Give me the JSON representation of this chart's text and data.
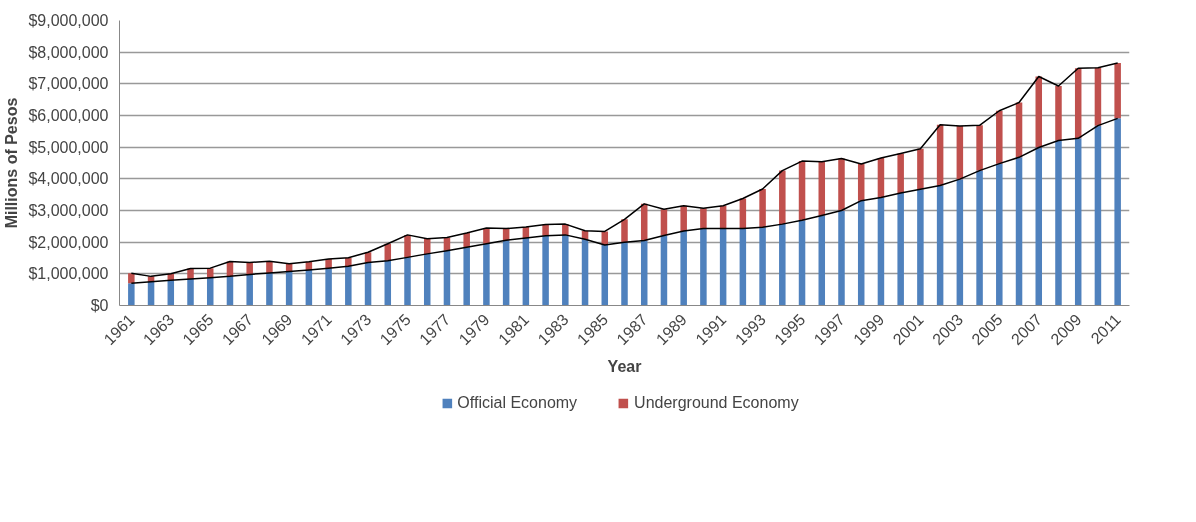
{
  "chart_data": {
    "type": "bar",
    "stacked": true,
    "xlabel": "Year",
    "ylabel": "Millions of Pesos",
    "categories": [
      "1961",
      null,
      "1963",
      null,
      "1965",
      null,
      "1967",
      null,
      "1969",
      null,
      "1971",
      null,
      "1973",
      null,
      "1975",
      null,
      "1977",
      null,
      "1979",
      null,
      "1981",
      null,
      "1983",
      null,
      "1985",
      null,
      "1987",
      null,
      "1989",
      null,
      "1991",
      null,
      "1993",
      null,
      "1995",
      null,
      "1997",
      null,
      "1999",
      null,
      "2001",
      null,
      "2003",
      null,
      "2005",
      null,
      "2007",
      null,
      "2009",
      null,
      "2011"
    ],
    "series": [
      {
        "name": "Official Economy",
        "color": "#4f81bd",
        "values": [
          700000,
          750000,
          800000,
          840000,
          880000,
          920000,
          980000,
          1030000,
          1070000,
          1120000,
          1180000,
          1240000,
          1360000,
          1410000,
          1520000,
          1630000,
          1730000,
          1840000,
          1950000,
          2060000,
          2130000,
          2200000,
          2230000,
          2090000,
          1910000,
          2000000,
          2050000,
          2210000,
          2350000,
          2430000,
          2430000,
          2430000,
          2470000,
          2570000,
          2690000,
          2840000,
          3000000,
          3310000,
          3410000,
          3550000,
          3670000,
          3790000,
          3990000,
          4260000,
          4480000,
          4680000,
          4990000,
          5210000,
          5280000,
          5680000,
          5910000
        ]
      },
      {
        "name": "Underground Economy",
        "color": "#c0504d",
        "values": [
          320000,
          170000,
          200000,
          330000,
          300000,
          470000,
          380000,
          370000,
          250000,
          260000,
          290000,
          270000,
          320000,
          540000,
          710000,
          480000,
          420000,
          450000,
          500000,
          370000,
          350000,
          360000,
          340000,
          270000,
          430000,
          720000,
          1160000,
          830000,
          800000,
          640000,
          720000,
          950000,
          1210000,
          1690000,
          1870000,
          1700000,
          1640000,
          1160000,
          1250000,
          1250000,
          1280000,
          1920000,
          1680000,
          1430000,
          1670000,
          1730000,
          2240000,
          1720000,
          2210000,
          1830000,
          1750000
        ]
      },
      {
        "type": "line",
        "color": "#000000",
        "values": [
          700000,
          750000,
          800000,
          840000,
          880000,
          920000,
          980000,
          1030000,
          1070000,
          1120000,
          1180000,
          1240000,
          1360000,
          1410000,
          1520000,
          1630000,
          1730000,
          1840000,
          1950000,
          2060000,
          2130000,
          2200000,
          2230000,
          2090000,
          1910000,
          2000000,
          2050000,
          2210000,
          2350000,
          2430000,
          2430000,
          2430000,
          2470000,
          2570000,
          2690000,
          2840000,
          3000000,
          3310000,
          3410000,
          3550000,
          3670000,
          3790000,
          3990000,
          4260000,
          4480000,
          4680000,
          4990000,
          5210000,
          5280000,
          5680000,
          5910000
        ]
      },
      {
        "type": "line",
        "color": "#000000",
        "values": [
          1020000,
          920000,
          1000000,
          1170000,
          1180000,
          1390000,
          1360000,
          1400000,
          1320000,
          1380000,
          1470000,
          1510000,
          1680000,
          1950000,
          2230000,
          2110000,
          2150000,
          2290000,
          2450000,
          2430000,
          2480000,
          2560000,
          2570000,
          2360000,
          2340000,
          2720000,
          3210000,
          3040000,
          3150000,
          3070000,
          3150000,
          3380000,
          3680000,
          4260000,
          4560000,
          4540000,
          4640000,
          4470000,
          4660000,
          4800000,
          4950000,
          5710000,
          5670000,
          5690000,
          6150000,
          6410000,
          7230000,
          6930000,
          7490000,
          7510000,
          7660000
        ]
      }
    ],
    "ylim": [
      0,
      9000000
    ],
    "yticks": [
      {
        "value": 0,
        "label": "$0"
      },
      {
        "value": 1000000,
        "label": "$1,000,000"
      },
      {
        "value": 2000000,
        "label": "$2,000,000"
      },
      {
        "value": 3000000,
        "label": "$3,000,000"
      },
      {
        "value": 4000000,
        "label": "$4,000,000"
      },
      {
        "value": 5000000,
        "label": "$5,000,000"
      },
      {
        "value": 6000000,
        "label": "$6,000,000"
      },
      {
        "value": 7000000,
        "label": "$7,000,000"
      },
      {
        "value": 8000000,
        "label": "$8,000,000"
      },
      {
        "value": 9000000,
        "label": "$9,000,000"
      }
    ],
    "grid": "y",
    "legend": "bottom",
    "marker": "none",
    "line_style": "solid"
  }
}
